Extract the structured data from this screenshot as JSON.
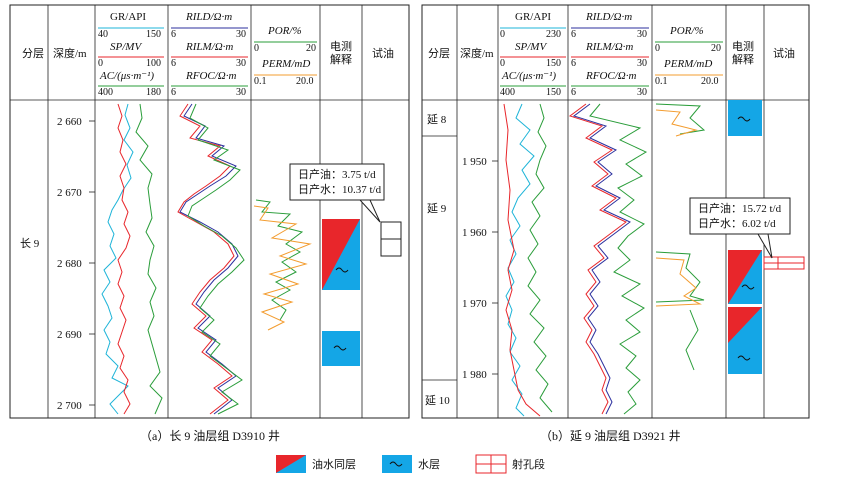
{
  "colors": {
    "gr": "#1eb4d8",
    "sp": "#e8262b",
    "ac": "#2a9d3a",
    "rild": "#2b2f9e",
    "rilm": "#e8262b",
    "rfoc": "#2a9d3a",
    "por": "#2a9d3a",
    "perm": "#f39c2f",
    "oil": "#e8262b",
    "water": "#14a6e6"
  },
  "headers": {
    "layer": "分层",
    "depth": "深度/m",
    "interp": [
      "电测",
      "解释"
    ],
    "test": "试油",
    "gr_label": "GR/API",
    "sp_label": "SP/MV",
    "ac_label": "AC/(μs·m⁻¹)",
    "rild_label": "RILD/Ω·m",
    "rilm_label": "RILM/Ω·m",
    "rfoc_label": "RFOC/Ω·m",
    "por_label": "POR/%",
    "perm_label": "PERM/mD"
  },
  "panel_a": {
    "caption": "（a）长 9 油层组 D3910 井",
    "gr_scale": [
      "40",
      "150"
    ],
    "sp_scale": [
      "0",
      "100"
    ],
    "ac_scale": [
      "400",
      "180"
    ],
    "rild_scale": [
      "6",
      "30"
    ],
    "rilm_scale": [
      "6",
      "30"
    ],
    "rfoc_scale": [
      "6",
      "30"
    ],
    "por_scale": [
      "0",
      "20"
    ],
    "perm_scale": [
      "0.1",
      "20.0"
    ],
    "layer": "长 9",
    "depths": [
      "2 660",
      "2 670",
      "2 680",
      "2 690",
      "2 700"
    ],
    "callout": [
      "日产油：3.75 t/d",
      "日产水：10.37 t/d"
    ]
  },
  "panel_b": {
    "caption": "（b）延 9 油层组 D3921 井",
    "gr_scale": [
      "0",
      "230"
    ],
    "sp_scale": [
      "0",
      "150"
    ],
    "ac_scale": [
      "400",
      "150"
    ],
    "rild_scale": [
      "6",
      "30"
    ],
    "rilm_scale": [
      "6",
      "30"
    ],
    "rfoc_scale": [
      "6",
      "30"
    ],
    "por_scale": [
      "0",
      "20"
    ],
    "perm_scale": [
      "0.1",
      "20.0"
    ],
    "layers": [
      "延 8",
      "延 9",
      "延 10"
    ],
    "depths": [
      "1 950",
      "1 960",
      "1 970",
      "1 980"
    ],
    "callout": [
      "日产油：15.72 t/d",
      "日产水：6.02 t/d"
    ]
  },
  "legend": {
    "oil_water": "油水同层",
    "water": "水层",
    "perforation": "射孔段"
  }
}
